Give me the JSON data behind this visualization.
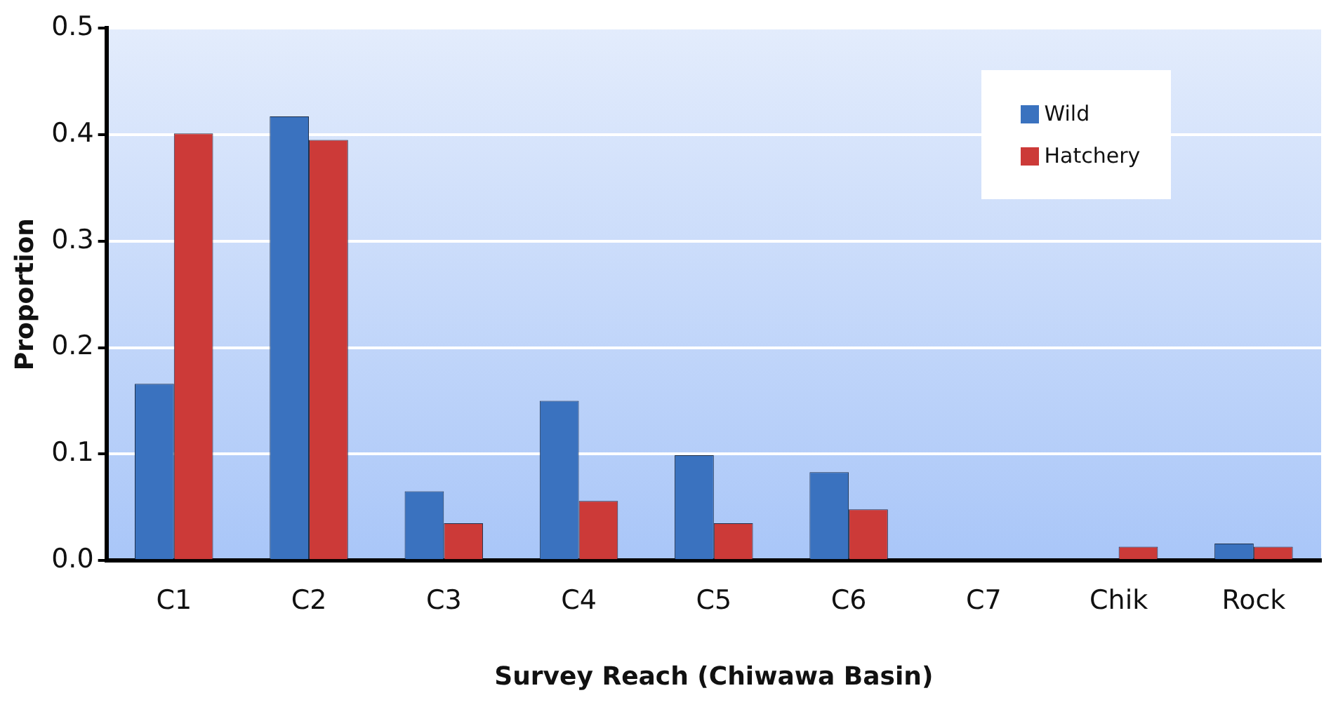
{
  "chart_data": {
    "type": "bar",
    "xlabel": "Survey Reach (Chiwawa Basin)",
    "ylabel": "Proportion",
    "categories": [
      "C1",
      "C2",
      "C3",
      "C4",
      "C5",
      "C6",
      "C7",
      "Chik",
      "Rock"
    ],
    "series": [
      {
        "name": "Wild",
        "color": "#3a72bf",
        "values": [
          0.166,
          0.417,
          0.065,
          0.15,
          0.099,
          0.083,
          0,
          0,
          0.016
        ]
      },
      {
        "name": "Hatchery",
        "color": "#cc3a38",
        "values": [
          0.401,
          0.395,
          0.035,
          0.056,
          0.035,
          0.048,
          0,
          0.013,
          0.013
        ]
      }
    ],
    "ylim": [
      0,
      0.5
    ],
    "yticks": [
      {
        "value": 0,
        "label": "0.0"
      },
      {
        "value": 0.1,
        "label": "0.1"
      },
      {
        "value": 0.2,
        "label": "0.2"
      },
      {
        "value": 0.3,
        "label": "0.3"
      },
      {
        "value": 0.4,
        "label": "0.4"
      },
      {
        "value": 0.5,
        "label": "0.5"
      }
    ],
    "grid": "y",
    "legend": "top right"
  }
}
